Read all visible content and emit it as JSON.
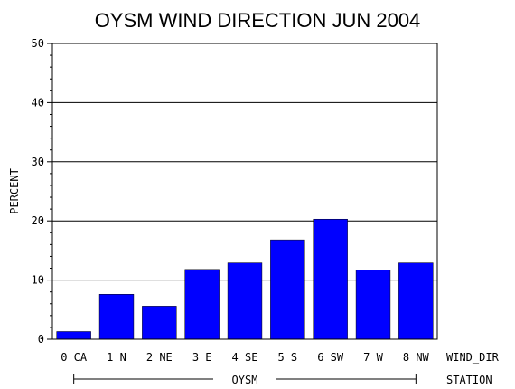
{
  "chart_data": {
    "type": "bar",
    "title": "OYSM WIND DIRECTION JUN 2004",
    "ylabel": "PERCENT",
    "xlabel": "WIND_DIR",
    "group_label": "STATION",
    "group_name": "OYSM",
    "categories": [
      "0 CA",
      "1 N",
      "2 NE",
      "3 E",
      "4 SE",
      "5 S",
      "6 SW",
      "7 W",
      "8 NW"
    ],
    "values": [
      1.3,
      7.6,
      5.6,
      11.8,
      12.9,
      16.8,
      20.3,
      11.7,
      12.9
    ],
    "ylim": [
      0,
      50
    ],
    "yticks": [
      "0",
      "10",
      "20",
      "30",
      "40",
      "50"
    ],
    "grid": true,
    "bar_color": "#0000ff"
  }
}
